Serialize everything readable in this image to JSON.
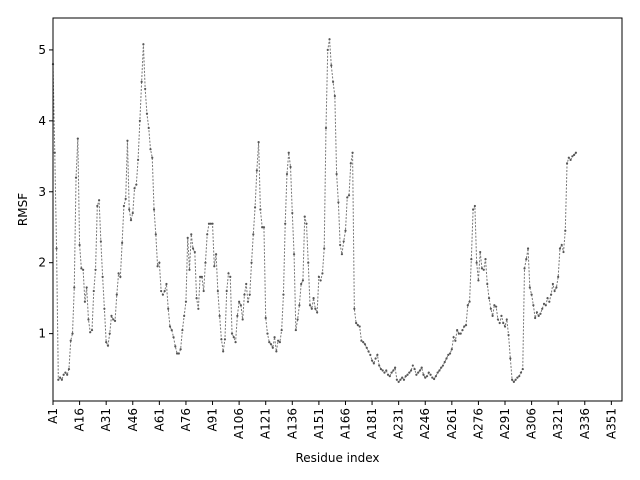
{
  "chart_data": {
    "type": "line",
    "title": "",
    "xlabel": "Residue index",
    "ylabel": "RMSF",
    "ylim": [
      0.05,
      5.45
    ],
    "yticks": [
      1,
      2,
      3,
      4,
      5
    ],
    "x_tick_labels": [
      "A1",
      "A16",
      "A31",
      "A46",
      "A61",
      "A76",
      "A91",
      "A106",
      "A121",
      "A136",
      "A151",
      "A166",
      "A181",
      "A231",
      "A246",
      "A261",
      "A276",
      "A291",
      "A306",
      "A321",
      "A336",
      "A351"
    ],
    "x_tick_positions": [
      0,
      15,
      30,
      45,
      60,
      75,
      90,
      105,
      120,
      135,
      150,
      165,
      180,
      195,
      210,
      225,
      240,
      255,
      270,
      285,
      300,
      315
    ],
    "x_range": [
      0,
      321
    ],
    "line_color": "#777777",
    "grid": false,
    "series": [
      {
        "values": [
          4.8,
          3.55,
          2.2,
          0.35,
          0.38,
          0.35,
          0.42,
          0.45,
          0.42,
          0.5,
          0.9,
          1.0,
          1.65,
          3.2,
          3.75,
          2.25,
          1.92,
          1.9,
          1.45,
          1.65,
          1.2,
          1.02,
          1.05,
          1.6,
          1.9,
          2.8,
          2.88,
          2.3,
          1.8,
          1.35,
          0.88,
          0.83,
          1.0,
          1.25,
          1.2,
          1.18,
          1.55,
          1.85,
          1.8,
          2.28,
          2.8,
          2.9,
          3.72,
          2.75,
          2.6,
          2.7,
          3.05,
          3.1,
          3.45,
          4.0,
          4.55,
          5.08,
          4.45,
          4.1,
          3.9,
          3.6,
          3.48,
          2.75,
          2.4,
          1.95,
          2.0,
          1.6,
          1.55,
          1.6,
          1.7,
          1.35,
          1.1,
          1.05,
          0.95,
          0.82,
          0.72,
          0.72,
          0.78,
          1.05,
          1.25,
          1.45,
          2.35,
          1.9,
          2.4,
          2.2,
          2.15,
          1.5,
          1.35,
          1.8,
          1.8,
          1.6,
          2.0,
          2.4,
          2.55,
          2.55,
          2.55,
          1.95,
          2.12,
          1.6,
          1.25,
          0.92,
          0.75,
          0.92,
          1.6,
          1.85,
          1.8,
          1.0,
          0.95,
          0.88,
          1.25,
          1.45,
          1.4,
          1.2,
          1.55,
          1.7,
          1.45,
          1.55,
          2.0,
          2.4,
          2.78,
          3.3,
          3.7,
          2.75,
          2.5,
          2.5,
          1.22,
          1.0,
          0.88,
          0.85,
          0.8,
          0.95,
          0.75,
          0.9,
          0.88,
          1.05,
          1.55,
          2.55,
          3.25,
          3.55,
          3.35,
          2.7,
          2.12,
          1.05,
          1.2,
          1.4,
          1.7,
          1.75,
          2.65,
          2.55,
          2.0,
          1.4,
          1.35,
          1.5,
          1.35,
          1.3,
          1.8,
          1.75,
          1.85,
          2.2,
          3.9,
          5.0,
          5.15,
          4.78,
          4.55,
          4.35,
          3.25,
          2.85,
          2.25,
          2.12,
          2.3,
          2.45,
          2.92,
          2.95,
          3.4,
          3.55,
          1.35,
          1.15,
          1.12,
          1.1,
          0.9,
          0.88,
          0.85,
          0.8,
          0.75,
          0.7,
          0.62,
          0.58,
          0.65,
          0.7,
          0.55,
          0.5,
          0.48,
          0.45,
          0.48,
          0.42,
          0.4,
          0.45,
          0.48,
          0.52,
          0.35,
          0.32,
          0.35,
          0.38,
          0.35,
          0.4,
          0.42,
          0.45,
          0.48,
          0.55,
          0.5,
          0.42,
          0.45,
          0.48,
          0.52,
          0.42,
          0.38,
          0.4,
          0.45,
          0.42,
          0.38,
          0.36,
          0.4,
          0.45,
          0.48,
          0.52,
          0.55,
          0.6,
          0.65,
          0.7,
          0.72,
          0.78,
          0.95,
          0.9,
          1.05,
          1.0,
          1.0,
          1.05,
          1.1,
          1.12,
          1.4,
          1.45,
          2.05,
          2.75,
          2.8,
          2.0,
          1.75,
          2.15,
          1.92,
          1.9,
          2.05,
          1.7,
          1.5,
          1.35,
          1.25,
          1.4,
          1.38,
          1.2,
          1.15,
          1.25,
          1.15,
          1.1,
          1.2,
          0.98,
          0.65,
          0.35,
          0.32,
          0.35,
          0.38,
          0.4,
          0.45,
          0.5,
          1.92,
          2.05,
          2.2,
          1.65,
          1.55,
          1.4,
          1.22,
          1.3,
          1.25,
          1.28,
          1.35,
          1.42,
          1.4,
          1.5,
          1.45,
          1.55,
          1.7,
          1.6,
          1.65,
          1.8,
          2.2,
          2.25,
          2.15,
          2.45,
          3.4,
          3.48,
          3.45,
          3.5,
          3.52,
          3.55
        ]
      }
    ]
  }
}
